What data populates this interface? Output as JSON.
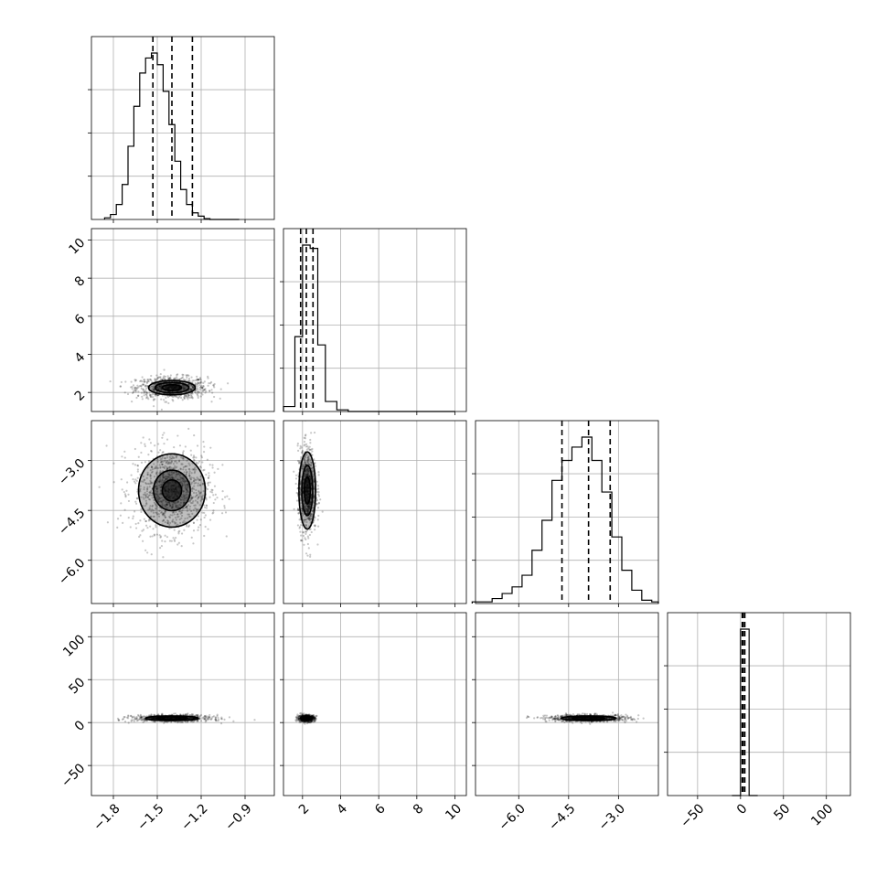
{
  "chart_data": {
    "type": "corner",
    "grid": true,
    "colors": {
      "line": "#000000",
      "grid": "#b0b0b0",
      "density": "#000000"
    },
    "parameters": [
      {
        "lim": [
          -1.95,
          -0.7
        ],
        "ticks": [
          -1.8,
          -1.5,
          -1.2,
          -0.9
        ],
        "tick_labels": [
          "−1.8",
          "−1.5",
          "−1.2",
          "−0.9"
        ]
      },
      {
        "lim": [
          1.0,
          10.6
        ],
        "ticks": [
          2,
          4,
          6,
          8,
          10
        ],
        "tick_labels": [
          "2",
          "4",
          "6",
          "8",
          "10"
        ]
      },
      {
        "lim": [
          -7.3,
          -1.8
        ],
        "ticks": [
          -6.0,
          -4.5,
          -3.0
        ],
        "tick_labels": [
          "−6.0",
          "−4.5",
          "−3.0"
        ]
      },
      {
        "lim": [
          -85,
          128
        ],
        "ticks": [
          -50,
          0,
          50,
          100
        ],
        "tick_labels": [
          "−50",
          "0",
          "50",
          "100"
        ]
      }
    ],
    "histograms": [
      {
        "bin_edges": [
          -1.86,
          -1.82,
          -1.78,
          -1.74,
          -1.7,
          -1.66,
          -1.62,
          -1.58,
          -1.54,
          -1.5,
          -1.46,
          -1.42,
          -1.38,
          -1.34,
          -1.3,
          -1.26,
          -1.22,
          -1.18,
          -1.14,
          -1.1,
          -1.06,
          -1.02,
          -0.98,
          -0.94
        ],
        "counts": [
          0.01,
          0.03,
          0.09,
          0.21,
          0.44,
          0.68,
          0.88,
          0.97,
          1.0,
          0.93,
          0.77,
          0.57,
          0.35,
          0.18,
          0.09,
          0.04,
          0.02,
          0.005,
          0,
          0,
          0,
          0,
          0
        ],
        "quantiles": [
          -1.53,
          -1.4,
          -1.26
        ]
      },
      {
        "bin_edges": [
          1.0,
          1.6,
          2.0,
          2.4,
          2.8,
          3.2,
          3.8,
          4.4,
          5.2,
          6.4,
          7.6,
          8.8,
          10.0
        ],
        "counts": [
          0.03,
          0.45,
          1.0,
          0.98,
          0.4,
          0.06,
          0.01,
          0,
          0,
          0,
          0,
          0
        ],
        "quantiles": [
          1.9,
          2.2,
          2.55
        ]
      },
      {
        "bin_edges": [
          -7.4,
          -7.1,
          -6.8,
          -6.5,
          -6.2,
          -5.9,
          -5.6,
          -5.3,
          -5.0,
          -4.7,
          -4.4,
          -4.1,
          -3.8,
          -3.5,
          -3.2,
          -2.9,
          -2.6,
          -2.3,
          -2.0,
          -1.8
        ],
        "counts": [
          0.01,
          0.01,
          0.03,
          0.06,
          0.1,
          0.17,
          0.32,
          0.5,
          0.74,
          0.86,
          0.94,
          1.0,
          0.86,
          0.67,
          0.4,
          0.2,
          0.08,
          0.02,
          0.01
        ],
        "quantiles": [
          -4.7,
          -3.9,
          -3.25
        ]
      },
      {
        "bin_edges": [
          -10,
          0,
          10,
          20
        ],
        "counts": [
          0,
          1.0,
          0
        ],
        "quantiles": [
          2,
          3,
          5
        ]
      }
    ],
    "panels": [
      {
        "x": 0,
        "y": 1,
        "center": [
          -1.4,
          2.25
        ],
        "sigma": [
          0.11,
          0.26
        ],
        "contour_radii": [
          0.6,
          1.05,
          1.45
        ],
        "points": 900
      },
      {
        "x": 0,
        "y": 2,
        "center": [
          -1.4,
          -3.9
        ],
        "sigma": [
          0.12,
          0.58
        ],
        "contour_radii": [
          0.55,
          1.05,
          1.9
        ],
        "points": 1100
      },
      {
        "x": 1,
        "y": 2,
        "center": [
          2.25,
          -3.9
        ],
        "sigma": [
          0.22,
          0.58
        ],
        "contour_radii": [
          0.7,
          1.3,
          2.0
        ],
        "points": 900
      },
      {
        "x": 0,
        "y": 3,
        "center": [
          -1.4,
          5
        ],
        "sigma": [
          0.12,
          1.8
        ],
        "contour_radii": [
          0.9,
          1.5
        ],
        "points": 800
      },
      {
        "x": 1,
        "y": 3,
        "center": [
          2.2,
          5
        ],
        "sigma": [
          0.2,
          1.8
        ],
        "contour_radii": [
          0.9,
          1.5
        ],
        "points": 700
      },
      {
        "x": 2,
        "y": 3,
        "center": [
          -3.9,
          5
        ],
        "sigma": [
          0.55,
          1.8
        ],
        "contour_radii": [
          0.9,
          1.5
        ],
        "points": 800
      }
    ]
  }
}
